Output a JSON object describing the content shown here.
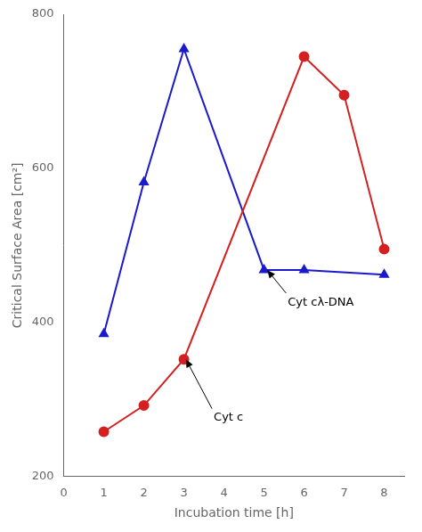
{
  "chart_data": {
    "type": "line",
    "x_label": "Incubation time [h]",
    "y_label": "Critical Surface Area [cm²]",
    "series": [
      {
        "x": [
          1,
          2,
          3,
          6,
          7,
          8
        ],
        "values": [
          258,
          292,
          352,
          745,
          695,
          495
        ],
        "color": "#d42020",
        "marker": "circle"
      },
      {
        "x": [
          1,
          2,
          3,
          5,
          6,
          8
        ],
        "values": [
          385,
          582,
          755,
          468,
          468,
          462
        ],
        "color": "#1a1acc",
        "marker": "triangle"
      }
    ],
    "xlim": [
      0,
      8.5
    ],
    "ylim": [
      200,
      800
    ],
    "xticks": [
      0,
      1,
      2,
      3,
      4,
      5,
      6,
      7,
      8
    ],
    "yticks": [
      200,
      400,
      600,
      800
    ],
    "grid": false,
    "annotations": [
      {
        "text": "Cyt c",
        "xy": [
          3.05,
          352
        ],
        "xytext": [
          3.7,
          288
        ]
      },
      {
        "text": "Cyt cλ-DNA",
        "xy": [
          5.08,
          468
        ],
        "xytext": [
          5.55,
          438
        ]
      }
    ]
  }
}
